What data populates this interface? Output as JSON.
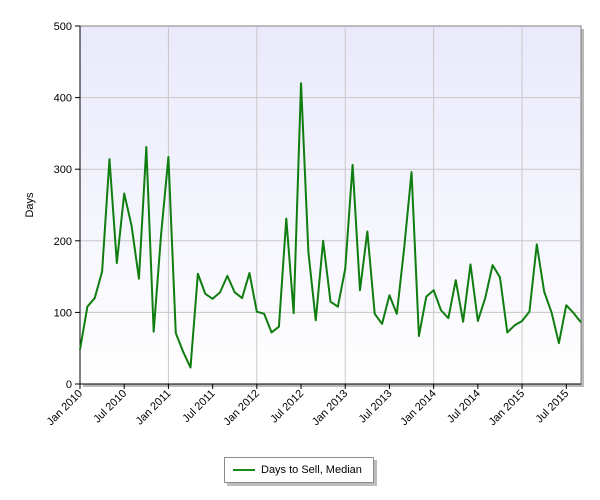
{
  "colors": {
    "series": "#0f7d0f",
    "plot_top": "#eeeeff",
    "plot_bottom": "#ffffff",
    "grid": "#c8c8c8",
    "frame": "#7f7f7f"
  },
  "chart_data": {
    "type": "line",
    "title": "",
    "xlabel": "",
    "ylabel": "Days",
    "ylim": [
      0,
      500
    ],
    "yticks": [
      0,
      100,
      200,
      300,
      400,
      500
    ],
    "xticks": [
      "Jan 2010",
      "Jul 2010",
      "Jan 2011",
      "Jul 2011",
      "Jan 2012",
      "Jul 2012",
      "Jan 2013",
      "Jul 2013",
      "Jan 2014",
      "Jul 2014",
      "Jan 2015",
      "Jul 2015"
    ],
    "grid": true,
    "legend": "bottom-center",
    "series": [
      {
        "name": "Days to Sell, Median",
        "values": [
          48,
          108,
          120,
          157,
          314,
          169,
          266,
          221,
          147,
          331,
          73,
          208,
          317,
          71,
          45,
          23,
          154,
          126,
          119,
          128,
          151,
          128,
          120,
          155,
          101,
          98,
          72,
          80,
          231,
          99,
          420,
          184,
          89,
          200,
          115,
          108,
          161,
          306,
          131,
          213,
          98,
          84,
          124,
          98,
          190,
          296,
          67,
          122,
          131,
          103,
          92,
          145,
          87,
          167,
          88,
          120,
          166,
          149,
          72,
          82,
          88,
          101,
          195,
          129,
          100,
          57,
          110,
          99,
          86
        ]
      }
    ]
  }
}
